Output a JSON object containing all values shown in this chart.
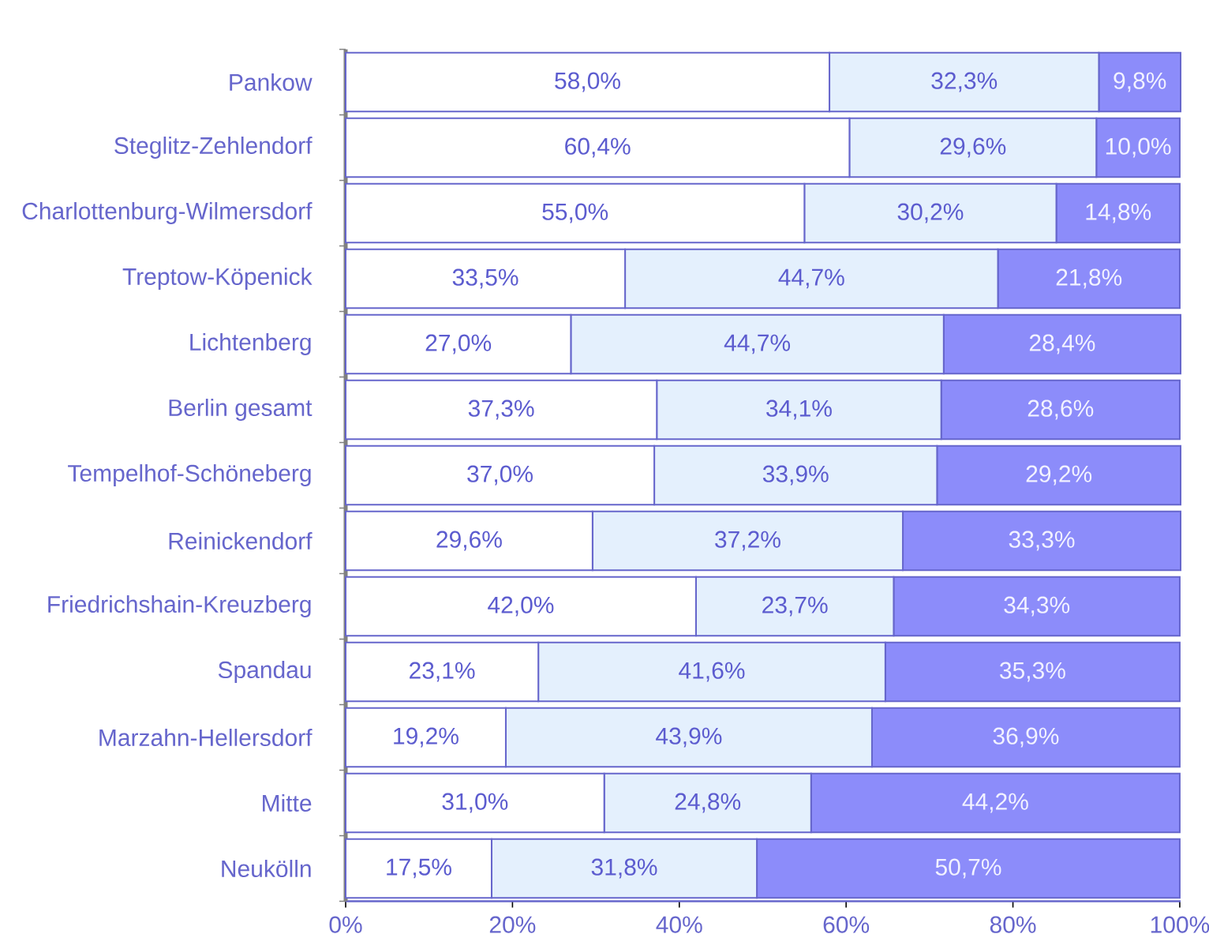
{
  "chart_data": {
    "type": "bar",
    "orientation": "horizontal",
    "stacked": true,
    "categories": [
      "Pankow",
      "Steglitz-Zehlendorf",
      "Charlottenburg-Wilmersdorf",
      "Treptow-Köpenick",
      "Lichtenberg",
      "Berlin gesamt",
      "Tempelhof-Schöneberg",
      "Reinickendorf",
      "Friedrichshain-Kreuzberg",
      "Spandau",
      "Marzahn-Hellersdorf",
      "Mitte",
      "Neukölln"
    ],
    "series": [
      {
        "color": "#ffffff",
        "values": [
          58.0,
          60.4,
          55.0,
          33.5,
          27.0,
          37.3,
          37.0,
          29.6,
          42.0,
          23.1,
          19.2,
          31.0,
          17.5
        ],
        "value_labels": [
          "58,0%",
          "60,4%",
          "55,0%",
          "33,5%",
          "27,0%",
          "37,3%",
          "37,0%",
          "29,6%",
          "42,0%",
          "23,1%",
          "19,2%",
          "31,0%",
          "17,5%"
        ]
      },
      {
        "color": "#e4f0fd",
        "values": [
          32.3,
          29.6,
          30.2,
          44.7,
          44.7,
          34.1,
          33.9,
          37.2,
          23.7,
          41.6,
          43.9,
          24.8,
          31.8
        ],
        "value_labels": [
          "32,3%",
          "29,6%",
          "30,2%",
          "44,7%",
          "44,7%",
          "34,1%",
          "33,9%",
          "37,2%",
          "23,7%",
          "41,6%",
          "43,9%",
          "24,8%",
          "31,8%"
        ]
      },
      {
        "color": "#8c8cfa",
        "values": [
          9.8,
          10.0,
          14.8,
          21.8,
          28.4,
          28.6,
          29.2,
          33.3,
          34.3,
          35.3,
          36.9,
          44.2,
          50.7
        ],
        "value_labels": [
          "9,8%",
          "10,0%",
          "14,8%",
          "21,8%",
          "28,4%",
          "28,6%",
          "29,2%",
          "33,3%",
          "34,3%",
          "35,3%",
          "36,9%",
          "44,2%",
          "50,7%"
        ]
      }
    ],
    "xlim": [
      0,
      100.1
    ],
    "xticks": [
      {
        "value": 0,
        "label": "0%"
      },
      {
        "value": 20,
        "label": "20%"
      },
      {
        "value": 40,
        "label": "40%"
      },
      {
        "value": 60,
        "label": "60%"
      },
      {
        "value": 80,
        "label": "80%"
      },
      {
        "value": 100,
        "label": "100%"
      }
    ]
  }
}
